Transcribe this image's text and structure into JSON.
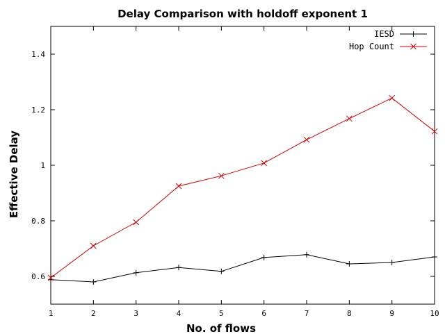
{
  "chart_data": {
    "type": "line",
    "title": "Delay Comparison with holdoff exponent 1",
    "xlabel": "No. of flows",
    "ylabel": "Effective Delay",
    "xlim": [
      1,
      10
    ],
    "ylim": [
      0.5,
      1.5
    ],
    "x": [
      1,
      2,
      3,
      4,
      5,
      6,
      7,
      8,
      9,
      10
    ],
    "xticks": [
      1,
      2,
      3,
      4,
      5,
      6,
      7,
      8,
      9,
      10
    ],
    "yticks": [
      0.6,
      0.8,
      1,
      1.2,
      1.4
    ],
    "ytick_labels": [
      "0.6",
      "0.8",
      "1",
      "1.2",
      "1.4"
    ],
    "grid": false,
    "legend_position": "top-right",
    "series": [
      {
        "name": "IESD",
        "color": "#000000",
        "marker": "plus",
        "values": [
          0.588,
          0.58,
          0.613,
          0.632,
          0.618,
          0.668,
          0.678,
          0.645,
          0.65,
          0.67
        ]
      },
      {
        "name": "Hop Count",
        "color": "#cc0000",
        "marker": "cross",
        "values": [
          0.595,
          0.71,
          0.795,
          0.925,
          0.962,
          1.008,
          1.092,
          1.168,
          1.242,
          1.122
        ]
      }
    ]
  }
}
